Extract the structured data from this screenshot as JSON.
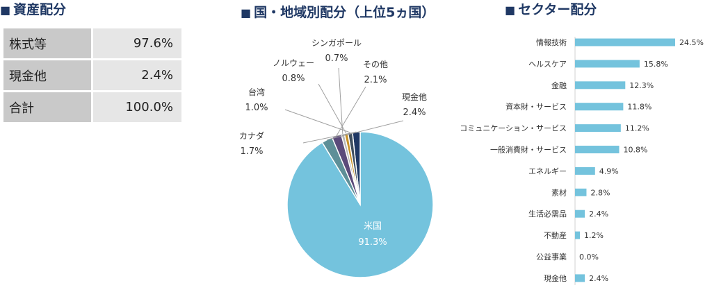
{
  "asset_allocation": {
    "title": "資産配分",
    "rows": [
      {
        "label": "株式等",
        "value": "97.6%"
      },
      {
        "label": "現金他",
        "value": "2.4%"
      },
      {
        "label": "合計",
        "value": "100.0%"
      }
    ]
  },
  "chart_data": [
    {
      "type": "pie",
      "title": "国・地域別配分（上位5ヵ国）",
      "slices": [
        {
          "label": "米国",
          "value": 91.3,
          "display": "91.3%",
          "color": "#74c3dd"
        },
        {
          "label": "カナダ",
          "value": 1.7,
          "display": "1.7%",
          "color": "#1f3864"
        },
        {
          "label": "台湾",
          "value": 1.0,
          "display": "1.0%",
          "color": "#3f4f5f"
        },
        {
          "label": "ノルウェー",
          "value": 0.8,
          "display": "0.8%",
          "color": "#c8922a"
        },
        {
          "label": "シンガポール",
          "value": 0.7,
          "display": "0.7%",
          "color": "#b7b7b7"
        },
        {
          "label": "その他",
          "value": 2.1,
          "display": "2.1%",
          "color": "#5b4a7a"
        },
        {
          "label": "現金他",
          "value": 2.4,
          "display": "2.4%",
          "color": "#5e8f98"
        }
      ]
    },
    {
      "type": "bar",
      "orientation": "horizontal",
      "title": "セクター配分",
      "color": "#74c3dd",
      "categories": [
        "情報技術",
        "ヘルスケア",
        "金融",
        "資本財・サービス",
        "コミュニケーション・サービス",
        "一般消費財・サービス",
        "エネルギー",
        "素材",
        "生活必需品",
        "不動産",
        "公益事業",
        "現金他"
      ],
      "values": [
        24.5,
        15.8,
        12.3,
        11.8,
        11.2,
        10.8,
        4.9,
        2.8,
        2.4,
        1.2,
        0.0,
        2.4
      ],
      "labels": [
        "24.5%",
        "15.8%",
        "12.3%",
        "11.8%",
        "11.2%",
        "10.8%",
        "4.9%",
        "2.8%",
        "2.4%",
        "1.2%",
        "0.0%",
        "2.4%"
      ]
    }
  ]
}
